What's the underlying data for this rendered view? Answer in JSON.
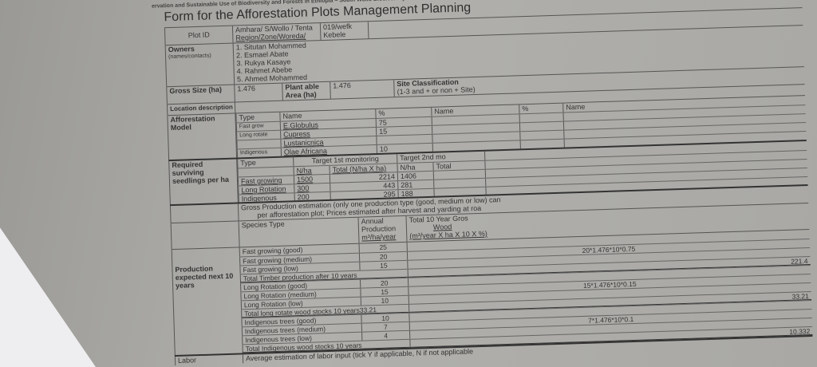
{
  "header_text": "ervation and Sustainable Use of Biodiversity and Forests in Ethiopia – South Wollo Biodiversity and Afforest",
  "title": "Form for the Afforestation Plots Management Planning",
  "plot": {
    "label": "Plot ID",
    "region_value": "Amhara/ S/Wollo / Tenta",
    "region_label": "Region/Zone/Woreda/",
    "kebele_value": "019/wefk",
    "kebele_label": "Kebele"
  },
  "owners": {
    "label": "Owners",
    "sublabel": "(names/contacts)",
    "names": [
      "1. Situtan Mohammed",
      "2. Esmael Abate",
      "3. Rukya Kasaye",
      "4. Rahmet Abebe",
      "5. Ahmed Mohammed"
    ]
  },
  "size": {
    "label": "Gross Size (ha)",
    "value": "1.476",
    "plantable_label": "Plant able Area (ha)",
    "plantable_value": "1.476",
    "site_label": "Site Classification",
    "site_sub": "(1-3 and + or non + Site)"
  },
  "location": {
    "label": "Location description"
  },
  "model": {
    "label": "Afforestation Model",
    "headers": [
      "Type",
      "Name",
      "%",
      "Name",
      "%",
      "Name"
    ],
    "rows": [
      [
        "Fast grow",
        "E.Globulus",
        "75"
      ],
      [
        "Long rotate",
        "Cupress",
        "15"
      ],
      [
        "",
        "Lustanicnica",
        ""
      ],
      [
        "Indigenous",
        "Olae Africana",
        "10"
      ]
    ]
  },
  "seedlings": {
    "label": "Required surviving seedlings per ha",
    "type_header": "Type",
    "target1": "Target 1st monitoring",
    "target2": "Target 2nd mo",
    "nha": "N/ha",
    "total1": "Total (N/ha X ha)",
    "total2": "Total",
    "rows": [
      [
        "Fast growing",
        "1500",
        "2214",
        "1406"
      ],
      [
        "Long Rotation",
        "300",
        "443",
        "281"
      ],
      [
        "Indigenous",
        "200",
        "295",
        "188"
      ]
    ]
  },
  "gross_note": [
    "Gross Production estimation (only one production type (good, medium or low) can",
    "per afforestation plot; Prices estimated after harvest and yarding at roa"
  ],
  "production": {
    "label": "Production expected next 10 years",
    "species_type": "Species Type",
    "annual": "Annual",
    "production": "Production",
    "unit": "m³/ha/year",
    "total10": "Total 10 Year Gros",
    "wood": "Wood",
    "wood_unit": "(m³/year X ha X 10 X %)",
    "rows": [
      [
        "Fast growing (good)",
        "25",
        ""
      ],
      [
        "Fast growing (medium)",
        "20",
        "20*1.476*10*0.75"
      ],
      [
        "Fast growing (low)",
        "15",
        ""
      ],
      [
        "Total Timber production after 10 years",
        "",
        "221.4"
      ],
      [
        "Long Rotation (good)",
        "20",
        ""
      ],
      [
        "Long Rotation (medium)",
        "15",
        "15*1.476*10*0.15"
      ],
      [
        "Long Rotation (low)",
        "10",
        ""
      ],
      [
        "Total long rotate wood stocks 10 years33.21",
        "",
        "33.21"
      ],
      [
        "Indigenous trees (good)",
        "10",
        ""
      ],
      [
        "Indigenous trees (medium)",
        "7",
        "7*1.476*10*0.1"
      ],
      [
        "Indigenous trees (low)",
        "4",
        ""
      ],
      [
        "Total Indigenous wood stocks 10 years",
        "",
        "10.332"
      ]
    ]
  },
  "labor": {
    "label": "Labor",
    "text": "Average estimation of labor input (tick Y if applicable, N if not applicable"
  }
}
